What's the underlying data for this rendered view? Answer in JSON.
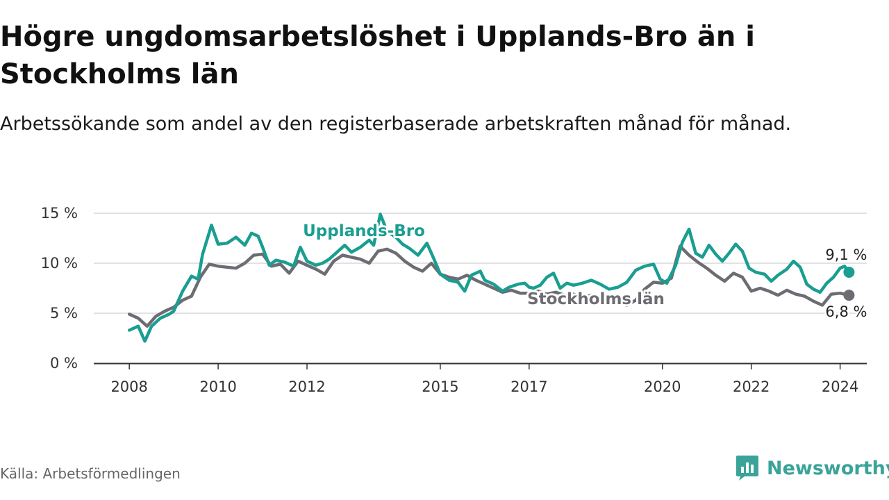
{
  "title": "Högre ungdomsarbetslöshet i Upplands-Bro än i Stockholms län",
  "subtitle": "Arbetssökande som andel av den registerbaserade arbetskraften månad för månad.",
  "source": "Källa: Arbetsförmedlingen",
  "brand": {
    "name": "Newsworthy",
    "icon": "newsworthy-logo-icon",
    "color": "#3aa39a"
  },
  "chart_data": {
    "type": "line",
    "title": "Högre ungdomsarbetslöshet i Upplands-Bro än i Stockholms län",
    "xlabel": "",
    "ylabel": "",
    "xlim": [
      2008,
      2024.6
    ],
    "ylim": [
      0,
      15
    ],
    "grid": "horizontal",
    "x_ticks": [
      {
        "value": 2008,
        "label": "2008"
      },
      {
        "value": 2010,
        "label": "2010"
      },
      {
        "value": 2012,
        "label": "2012"
      },
      {
        "value": 2015,
        "label": "2015"
      },
      {
        "value": 2017,
        "label": "2017"
      },
      {
        "value": 2020,
        "label": "2020"
      },
      {
        "value": 2022,
        "label": "2022"
      },
      {
        "value": 2024,
        "label": "2024"
      }
    ],
    "y_ticks": [
      {
        "value": 0,
        "label": "0 %"
      },
      {
        "value": 5,
        "label": "5 %"
      },
      {
        "value": 10,
        "label": "10 %"
      },
      {
        "value": 15,
        "label": "15 %"
      }
    ],
    "series": [
      {
        "name": "Stockholms län",
        "label": "Stockholms län",
        "color": "#6d6c72",
        "end_label": "6,8 %",
        "end_value": 6.8,
        "points": [
          [
            2008.0,
            4.9
          ],
          [
            2008.2,
            4.5
          ],
          [
            2008.4,
            3.7
          ],
          [
            2008.6,
            4.7
          ],
          [
            2008.8,
            5.2
          ],
          [
            2009.0,
            5.6
          ],
          [
            2009.2,
            6.3
          ],
          [
            2009.4,
            6.7
          ],
          [
            2009.6,
            8.6
          ],
          [
            2009.8,
            9.9
          ],
          [
            2010.0,
            9.7
          ],
          [
            2010.2,
            9.6
          ],
          [
            2010.4,
            9.5
          ],
          [
            2010.6,
            10.0
          ],
          [
            2010.8,
            10.8
          ],
          [
            2011.0,
            10.9
          ],
          [
            2011.2,
            9.7
          ],
          [
            2011.4,
            9.9
          ],
          [
            2011.6,
            9.0
          ],
          [
            2011.8,
            10.2
          ],
          [
            2012.0,
            9.8
          ],
          [
            2012.2,
            9.4
          ],
          [
            2012.4,
            8.9
          ],
          [
            2012.6,
            10.2
          ],
          [
            2012.8,
            10.8
          ],
          [
            2013.0,
            10.6
          ],
          [
            2013.2,
            10.4
          ],
          [
            2013.4,
            10.0
          ],
          [
            2013.6,
            11.2
          ],
          [
            2013.8,
            11.4
          ],
          [
            2014.0,
            11.0
          ],
          [
            2014.2,
            10.2
          ],
          [
            2014.4,
            9.6
          ],
          [
            2014.6,
            9.2
          ],
          [
            2014.8,
            10.0
          ],
          [
            2015.0,
            8.9
          ],
          [
            2015.2,
            8.6
          ],
          [
            2015.4,
            8.4
          ],
          [
            2015.6,
            8.8
          ],
          [
            2015.8,
            8.3
          ],
          [
            2016.0,
            7.9
          ],
          [
            2016.2,
            7.5
          ],
          [
            2016.4,
            7.1
          ],
          [
            2016.6,
            7.3
          ],
          [
            2016.8,
            7.0
          ],
          [
            2017.0,
            7.0
          ],
          [
            2017.2,
            7.2
          ],
          [
            2017.4,
            6.9
          ],
          [
            2017.6,
            7.1
          ],
          [
            2017.8,
            6.8
          ],
          [
            2018.0,
            6.9
          ],
          [
            2018.2,
            6.6
          ],
          [
            2018.4,
            6.8
          ],
          [
            2018.6,
            6.5
          ],
          [
            2018.8,
            6.4
          ],
          [
            2019.0,
            6.1
          ],
          [
            2019.2,
            5.8
          ],
          [
            2019.4,
            6.3
          ],
          [
            2019.6,
            7.4
          ],
          [
            2019.8,
            8.1
          ],
          [
            2020.0,
            8.0
          ],
          [
            2020.2,
            8.5
          ],
          [
            2020.4,
            11.7
          ],
          [
            2020.6,
            10.8
          ],
          [
            2020.8,
            10.1
          ],
          [
            2021.0,
            9.5
          ],
          [
            2021.2,
            8.8
          ],
          [
            2021.4,
            8.2
          ],
          [
            2021.6,
            9.0
          ],
          [
            2021.8,
            8.6
          ],
          [
            2022.0,
            7.2
          ],
          [
            2022.2,
            7.5
          ],
          [
            2022.4,
            7.2
          ],
          [
            2022.6,
            6.8
          ],
          [
            2022.8,
            7.3
          ],
          [
            2023.0,
            6.9
          ],
          [
            2023.2,
            6.7
          ],
          [
            2023.4,
            6.2
          ],
          [
            2023.6,
            5.8
          ],
          [
            2023.8,
            6.9
          ],
          [
            2024.0,
            7.0
          ],
          [
            2024.2,
            6.8
          ]
        ]
      },
      {
        "name": "Upplands-Bro",
        "label": "Upplands-Bro",
        "color": "#199e91",
        "end_label": "9,1 %",
        "end_value": 9.1,
        "points": [
          [
            2008.0,
            3.3
          ],
          [
            2008.2,
            3.7
          ],
          [
            2008.35,
            2.2
          ],
          [
            2008.5,
            3.7
          ],
          [
            2008.7,
            4.5
          ],
          [
            2008.9,
            4.9
          ],
          [
            2009.0,
            5.2
          ],
          [
            2009.2,
            7.2
          ],
          [
            2009.4,
            8.7
          ],
          [
            2009.55,
            8.4
          ],
          [
            2009.65,
            10.9
          ],
          [
            2009.85,
            13.8
          ],
          [
            2010.0,
            11.9
          ],
          [
            2010.2,
            12.0
          ],
          [
            2010.4,
            12.6
          ],
          [
            2010.6,
            11.8
          ],
          [
            2010.75,
            13.0
          ],
          [
            2010.9,
            12.7
          ],
          [
            2011.0,
            11.6
          ],
          [
            2011.15,
            9.8
          ],
          [
            2011.3,
            10.3
          ],
          [
            2011.5,
            10.1
          ],
          [
            2011.7,
            9.7
          ],
          [
            2011.85,
            11.6
          ],
          [
            2012.0,
            10.2
          ],
          [
            2012.2,
            9.8
          ],
          [
            2012.35,
            10.0
          ],
          [
            2012.5,
            10.4
          ],
          [
            2012.7,
            11.2
          ],
          [
            2012.85,
            11.8
          ],
          [
            2013.0,
            11.1
          ],
          [
            2013.2,
            11.6
          ],
          [
            2013.4,
            12.3
          ],
          [
            2013.5,
            11.8
          ],
          [
            2013.65,
            14.9
          ],
          [
            2013.8,
            13.2
          ],
          [
            2014.0,
            12.6
          ],
          [
            2014.15,
            11.9
          ],
          [
            2014.3,
            11.5
          ],
          [
            2014.5,
            10.8
          ],
          [
            2014.7,
            12.0
          ],
          [
            2014.85,
            10.5
          ],
          [
            2015.0,
            8.9
          ],
          [
            2015.2,
            8.3
          ],
          [
            2015.4,
            8.1
          ],
          [
            2015.55,
            7.2
          ],
          [
            2015.7,
            8.8
          ],
          [
            2015.9,
            9.2
          ],
          [
            2016.0,
            8.3
          ],
          [
            2016.2,
            7.9
          ],
          [
            2016.4,
            7.2
          ],
          [
            2016.55,
            7.6
          ],
          [
            2016.75,
            7.9
          ],
          [
            2016.9,
            8.0
          ],
          [
            2017.0,
            7.6
          ],
          [
            2017.1,
            7.5
          ],
          [
            2017.25,
            7.8
          ],
          [
            2017.4,
            8.6
          ],
          [
            2017.55,
            9.0
          ],
          [
            2017.7,
            7.5
          ],
          [
            2017.85,
            8.0
          ],
          [
            2018.0,
            7.8
          ],
          [
            2018.2,
            8.0
          ],
          [
            2018.4,
            8.3
          ],
          [
            2018.6,
            7.9
          ],
          [
            2018.8,
            7.4
          ],
          [
            2019.0,
            7.6
          ],
          [
            2019.2,
            8.1
          ],
          [
            2019.4,
            9.3
          ],
          [
            2019.6,
            9.7
          ],
          [
            2019.8,
            9.9
          ],
          [
            2019.95,
            8.4
          ],
          [
            2020.1,
            8.0
          ],
          [
            2020.3,
            9.8
          ],
          [
            2020.45,
            12.1
          ],
          [
            2020.6,
            13.4
          ],
          [
            2020.75,
            11.0
          ],
          [
            2020.9,
            10.6
          ],
          [
            2021.05,
            11.8
          ],
          [
            2021.2,
            10.9
          ],
          [
            2021.35,
            10.2
          ],
          [
            2021.5,
            11.0
          ],
          [
            2021.65,
            11.9
          ],
          [
            2021.8,
            11.2
          ],
          [
            2021.95,
            9.5
          ],
          [
            2022.1,
            9.1
          ],
          [
            2022.3,
            8.9
          ],
          [
            2022.45,
            8.2
          ],
          [
            2022.6,
            8.8
          ],
          [
            2022.8,
            9.4
          ],
          [
            2022.95,
            10.2
          ],
          [
            2023.1,
            9.6
          ],
          [
            2023.25,
            7.9
          ],
          [
            2023.4,
            7.4
          ],
          [
            2023.55,
            7.1
          ],
          [
            2023.7,
            8.0
          ],
          [
            2023.85,
            8.6
          ],
          [
            2024.0,
            9.5
          ],
          [
            2024.1,
            9.7
          ],
          [
            2024.2,
            9.1
          ]
        ]
      }
    ]
  }
}
